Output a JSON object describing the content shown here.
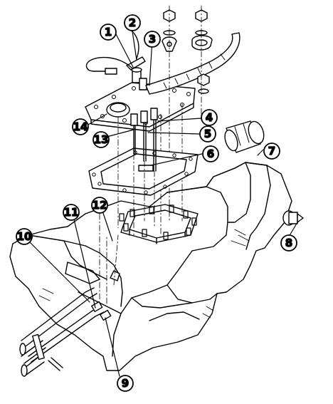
{
  "callouts": [
    {
      "id": "1",
      "label": "1"
    },
    {
      "id": "2",
      "label": "2"
    },
    {
      "id": "3",
      "label": "3"
    },
    {
      "id": "4",
      "label": "4"
    },
    {
      "id": "5",
      "label": "5"
    },
    {
      "id": "6",
      "label": "6"
    },
    {
      "id": "7",
      "label": "7"
    },
    {
      "id": "8",
      "label": "8"
    },
    {
      "id": "9",
      "label": "9"
    },
    {
      "id": "10",
      "label": "10"
    },
    {
      "id": "11",
      "label": "11"
    },
    {
      "id": "12",
      "label": "12"
    },
    {
      "id": "13",
      "label": "13"
    },
    {
      "id": "14",
      "label": "14"
    }
  ],
  "colors": {
    "line": "#000000",
    "fill": "#ffffff",
    "shade": "#e6e6e6"
  }
}
